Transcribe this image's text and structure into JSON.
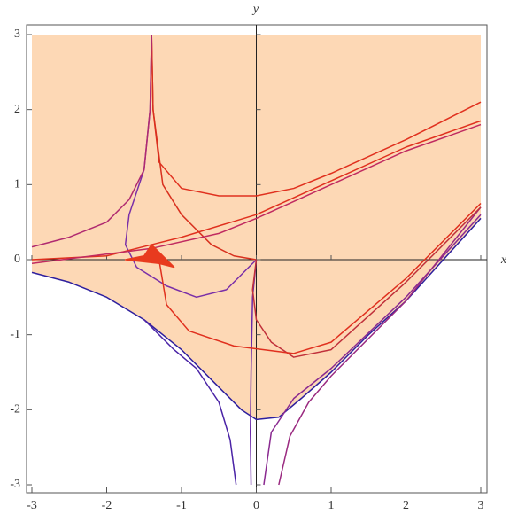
{
  "chart_data": {
    "type": "line",
    "x_label": "x",
    "y_label": "y",
    "xlim": [
      -3,
      3
    ],
    "ylim": [
      -3,
      3
    ],
    "xticks": [
      -3,
      -2,
      -1,
      0,
      1,
      2,
      3
    ],
    "yticks": [
      -3,
      -2,
      -1,
      0,
      1,
      2,
      3
    ],
    "region": {
      "color": "#fdd8b5",
      "x": [
        -3,
        -2.5,
        -2,
        -1.5,
        -1,
        -0.5,
        -0.2,
        0,
        0.3,
        0.6,
        1,
        1.5,
        2,
        2.5,
        3
      ],
      "values": [
        -0.17,
        -0.3,
        -0.5,
        -0.8,
        -1.2,
        -1.7,
        -2.0,
        -2.13,
        -2.1,
        -1.85,
        -1.5,
        -1.0,
        -0.55,
        0,
        0.55
      ]
    },
    "series": [
      {
        "color": "#2e1f9e",
        "x": [
          -3,
          -2.5,
          -2,
          -1.5,
          -1,
          -0.5,
          -0.2,
          0,
          0.3,
          0.6,
          1,
          1.5,
          2,
          2.5,
          3
        ],
        "values": [
          -0.17,
          -0.3,
          -0.5,
          -0.8,
          -1.2,
          -1.7,
          -2.0,
          -2.13,
          -2.1,
          -1.85,
          -1.5,
          -1.0,
          -0.55,
          0,
          0.55
        ]
      },
      {
        "color": "#4a23a6",
        "x": [
          -1.5,
          -1.1,
          -0.8,
          -0.5,
          -0.35,
          -0.27
        ],
        "values": [
          -0.8,
          -1.2,
          -1.45,
          -1.9,
          -2.4,
          -3
        ]
      },
      {
        "color": "#6a2aa8",
        "x": [
          0,
          -0.05,
          -0.07,
          -0.08,
          -0.07
        ],
        "values": [
          0,
          -0.5,
          -1.5,
          -2.3,
          -3
        ]
      },
      {
        "color": "#8a2a90",
        "x": [
          0.1,
          0.2,
          0.5,
          1,
          2,
          3
        ],
        "values": [
          -3,
          -2.3,
          -1.85,
          -1.45,
          -0.5,
          0.6
        ]
      },
      {
        "color": "#9a2a80",
        "x": [
          0.3,
          0.45,
          0.7,
          1,
          2,
          3
        ],
        "values": [
          -3,
          -2.35,
          -1.9,
          -1.55,
          -0.55,
          0.7
        ]
      },
      {
        "color": "#e0301e",
        "x": [
          -1.4,
          -1.38,
          -1.3,
          -1,
          -0.5,
          0,
          0.5,
          1,
          2,
          3
        ],
        "values": [
          3,
          2,
          1.3,
          0.95,
          0.85,
          0.85,
          0.95,
          1.15,
          1.6,
          2.1
        ]
      },
      {
        "color": "#d8301e",
        "x": [
          -1.4,
          -1.38,
          -1.25,
          -1,
          -0.6,
          -0.3,
          0
        ],
        "values": [
          3,
          2,
          1,
          0.6,
          0.2,
          0.05,
          0
        ]
      },
      {
        "color": "#7a2fa8",
        "x": [
          -1.4,
          -1.42,
          -1.5,
          -1.7,
          -1.75,
          -1.6,
          -1.2,
          -0.8,
          -0.4,
          0
        ],
        "values": [
          3,
          2,
          1.2,
          0.6,
          0.2,
          -0.1,
          -0.35,
          -0.5,
          -0.4,
          0
        ]
      },
      {
        "color": "#b02a70",
        "x": [
          -3,
          -2.5,
          -2,
          -1.7,
          -1.5,
          -1.42,
          -1.4
        ],
        "values": [
          0.17,
          0.3,
          0.5,
          0.8,
          1.2,
          2,
          3
        ]
      },
      {
        "color": "#e0301e",
        "x": [
          -3,
          -2,
          -1.4,
          -1,
          0,
          1,
          2,
          3
        ],
        "values": [
          0,
          0.05,
          0.2,
          0.3,
          0.6,
          1.05,
          1.5,
          1.85
        ]
      },
      {
        "color": "#c02a60",
        "x": [
          -3,
          -1.4,
          -0.5,
          0,
          1,
          2,
          3
        ],
        "values": [
          -0.05,
          0.15,
          0.35,
          0.55,
          1.0,
          1.45,
          1.8
        ]
      },
      {
        "color": "#c0303a",
        "x": [
          0,
          -0.05,
          0,
          0.2,
          0.5,
          1,
          2,
          3
        ],
        "values": [
          0,
          -0.4,
          -0.8,
          -1.1,
          -1.3,
          -1.2,
          -0.3,
          0.7
        ]
      },
      {
        "color": "#e0301e",
        "x": [
          -1.3,
          -1.25,
          -1.2,
          -0.9,
          -0.3,
          0.5,
          1,
          2,
          3
        ],
        "values": [
          0,
          -0.3,
          -0.6,
          -0.95,
          -1.15,
          -1.25,
          -1.1,
          -0.25,
          0.75
        ]
      },
      {
        "color": "#e83a1e",
        "fill": true,
        "x": [
          -1.4,
          -1.5,
          -1.75,
          -1.3,
          -1.1,
          -1.4
        ],
        "values": [
          0.2,
          0.05,
          0,
          -0.05,
          -0.1,
          0.2
        ]
      }
    ]
  }
}
